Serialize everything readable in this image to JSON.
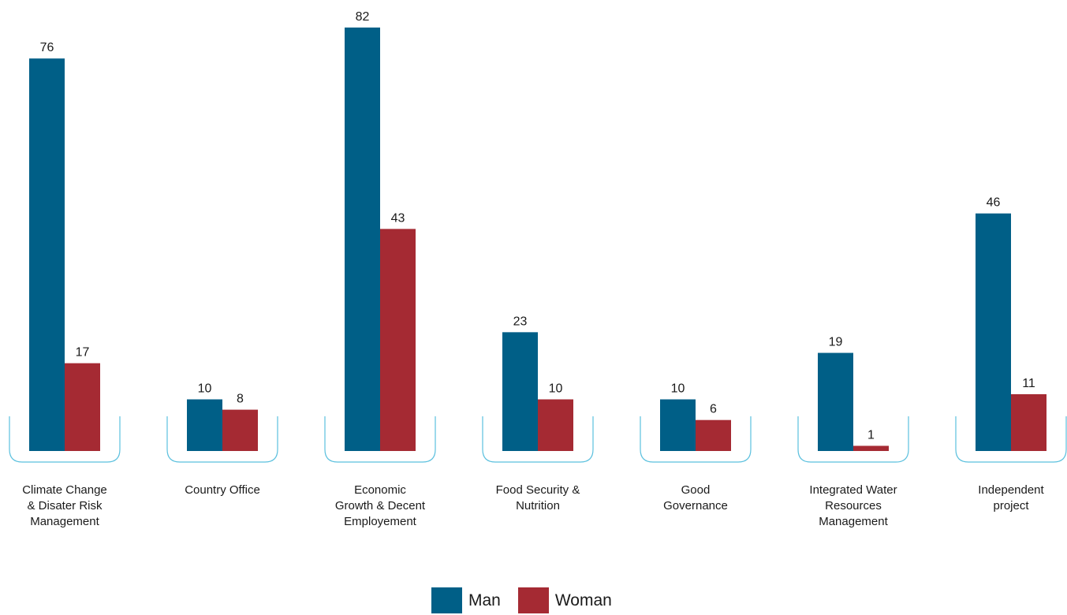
{
  "colors": {
    "man": "#005f87",
    "woman": "#a52a33",
    "bracket": "#5bc0de"
  },
  "chart_data": {
    "type": "bar",
    "categories": [
      [
        "Climate Change",
        "& Disater Risk",
        "Management"
      ],
      [
        "Country Office"
      ],
      [
        "Economic",
        "Growth & Decent",
        "Employement"
      ],
      [
        "Food Security &",
        "Nutrition"
      ],
      [
        "Good",
        "Governance"
      ],
      [
        "Integrated Water",
        "Resources",
        "Management"
      ],
      [
        "Independent",
        "project"
      ]
    ],
    "series": [
      {
        "name": "Man",
        "values": [
          76,
          10,
          82,
          23,
          10,
          19,
          46
        ]
      },
      {
        "name": "Woman",
        "values": [
          17,
          8,
          43,
          10,
          6,
          1,
          11
        ]
      }
    ],
    "legend": "bottom-center",
    "grid": false,
    "ylim": [
      0,
      82
    ]
  }
}
